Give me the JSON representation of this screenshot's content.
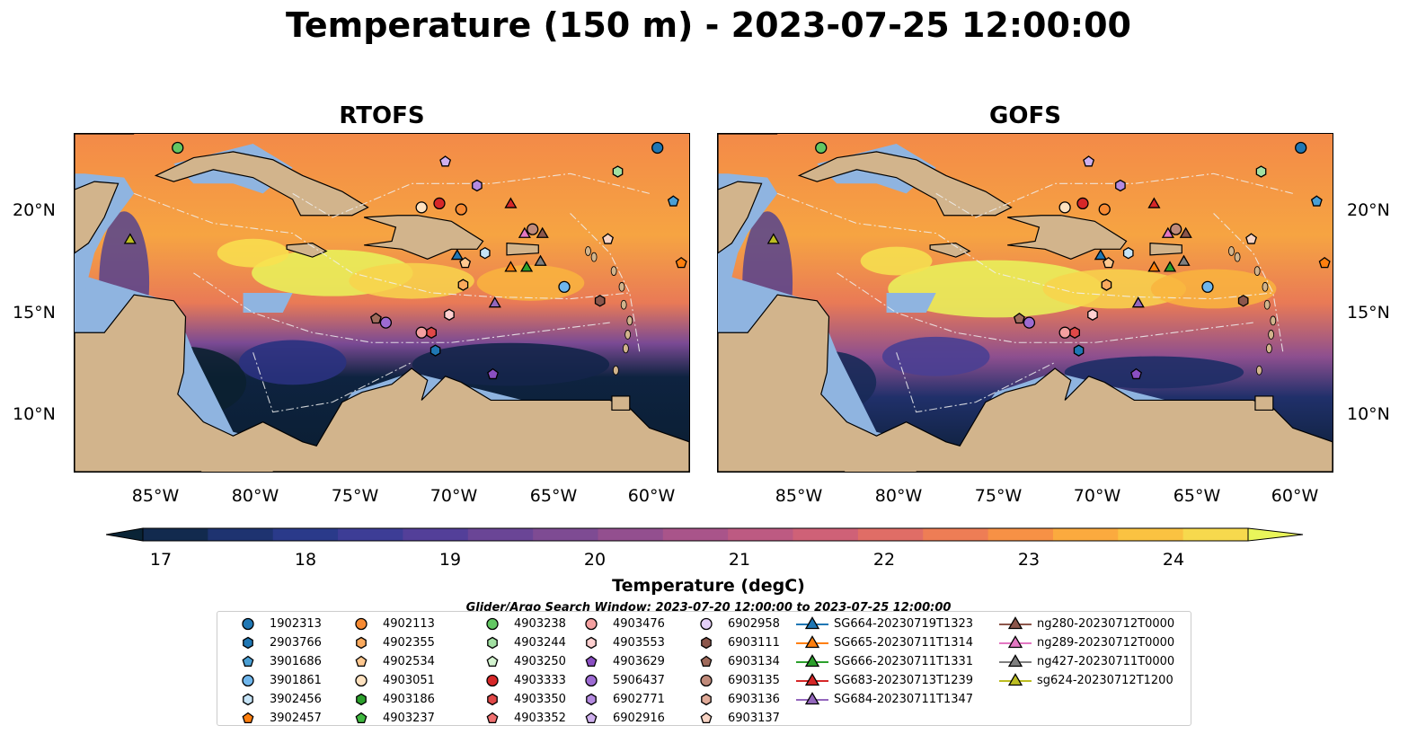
{
  "title": "Temperature (150 m) - 2023-07-25 12:00:00",
  "panels": [
    {
      "title": "RTOFS"
    },
    {
      "title": "GOFS"
    }
  ],
  "lat_labels": [
    "20°N",
    "15°N",
    "10°N"
  ],
  "lon_labels": [
    "85°W",
    "80°W",
    "75°W",
    "70°W",
    "65°W",
    "60°W"
  ],
  "map_extent": {
    "lon": [
      -89,
      -58
    ],
    "lat": [
      7,
      24
    ]
  },
  "colorbar": {
    "title": "Temperature (degC)",
    "ticks": [
      "17",
      "18",
      "19",
      "20",
      "21",
      "22",
      "23",
      "24"
    ],
    "range": [
      17,
      24.5
    ],
    "extend": "both",
    "colors": [
      "#0a2436",
      "#122a4e",
      "#1e3370",
      "#2a3a8a",
      "#3d3d96",
      "#533f99",
      "#6a4596",
      "#7e4b93",
      "#934f8f",
      "#a9548a",
      "#bd5a82",
      "#cf6177",
      "#e06d66",
      "#ee7d55",
      "#f79145",
      "#fbaa3e",
      "#fac241",
      "#f7d94d",
      "#e9f55a"
    ]
  },
  "search_window": "Glider/Argo Search Window: 2023-07-20 12:00:00 to 2023-07-25 12:00:00",
  "colors": {
    "land": "#d2b48c",
    "shelf": "#8fb4e0"
  },
  "legend": [
    {
      "label": "1902313",
      "marker": "circle",
      "color": "#1f77b4"
    },
    {
      "label": "2903766",
      "marker": "hexagon",
      "color": "#1f77b4"
    },
    {
      "label": "3901686",
      "marker": "pentagon",
      "color": "#4a9fd4"
    },
    {
      "label": "3901861",
      "marker": "circle",
      "color": "#6fb6ec"
    },
    {
      "label": "3902456",
      "marker": "hexagon",
      "color": "#c6e4f7"
    },
    {
      "label": "3902457",
      "marker": "pentagon",
      "color": "#ff7f0e"
    },
    {
      "label": "4902113",
      "marker": "circle",
      "color": "#f78a32"
    },
    {
      "label": "4902355",
      "marker": "hexagon",
      "color": "#fbaa5e"
    },
    {
      "label": "4902534",
      "marker": "pentagon",
      "color": "#ffc890"
    },
    {
      "label": "4903051",
      "marker": "circle",
      "color": "#ffe2c0"
    },
    {
      "label": "4903186",
      "marker": "hexagon",
      "color": "#2ca02c"
    },
    {
      "label": "4903237",
      "marker": "pentagon",
      "color": "#3fb83f"
    },
    {
      "label": "4903238",
      "marker": "circle",
      "color": "#63c763"
    },
    {
      "label": "4903244",
      "marker": "hexagon",
      "color": "#a2e0a2"
    },
    {
      "label": "4903250",
      "marker": "pentagon",
      "color": "#d4f4d0"
    },
    {
      "label": "4903333",
      "marker": "circle",
      "color": "#d62728"
    },
    {
      "label": "4903350",
      "marker": "hexagon",
      "color": "#e04848"
    },
    {
      "label": "4903352",
      "marker": "pentagon",
      "color": "#f07070"
    },
    {
      "label": "4903476",
      "marker": "circle",
      "color": "#f4a0a0"
    },
    {
      "label": "4903553",
      "marker": "hexagon",
      "color": "#ffd0d0"
    },
    {
      "label": "4903629",
      "marker": "pentagon",
      "color": "#8a4fc2"
    },
    {
      "label": "5906437",
      "marker": "circle",
      "color": "#9d6bd2"
    },
    {
      "label": "6902771",
      "marker": "hexagon",
      "color": "#b48ae0"
    },
    {
      "label": "6902916",
      "marker": "pentagon",
      "color": "#cfb0ee"
    },
    {
      "label": "6902958",
      "marker": "circle",
      "color": "#e4d0f8"
    },
    {
      "label": "6903111",
      "marker": "hexagon",
      "color": "#8c564b"
    },
    {
      "label": "6903134",
      "marker": "pentagon",
      "color": "#a06b5c"
    },
    {
      "label": "6903135",
      "marker": "circle",
      "color": "#c08a7a"
    },
    {
      "label": "6903136",
      "marker": "hexagon",
      "color": "#e0aa98"
    },
    {
      "label": "6903137",
      "marker": "pentagon",
      "color": "#f8d4c4"
    },
    {
      "label": "SG664-20230719T1323",
      "marker": "triangle-line",
      "color": "#1f77b4"
    },
    {
      "label": "SG665-20230711T1314",
      "marker": "triangle-line",
      "color": "#ff7f0e"
    },
    {
      "label": "SG666-20230711T1331",
      "marker": "triangle-line",
      "color": "#2ca02c"
    },
    {
      "label": "SG683-20230713T1239",
      "marker": "triangle-line",
      "color": "#d62728"
    },
    {
      "label": "SG684-20230711T1347",
      "marker": "triangle-line",
      "color": "#9467bd"
    },
    {
      "label": "ng280-20230712T0000",
      "marker": "triangle-line",
      "color": "#8c564b"
    },
    {
      "label": "ng289-20230712T0000",
      "marker": "triangle-line",
      "color": "#e377c2"
    },
    {
      "label": "ng427-20230711T0000",
      "marker": "triangle-line",
      "color": "#7f7f7f"
    },
    {
      "label": "sg624-20230712T1200",
      "marker": "triangle-line",
      "color": "#bcbd22"
    }
  ],
  "observations": [
    {
      "id": "4903238",
      "lon": -83.8,
      "lat": 23.3
    },
    {
      "id": "1902313",
      "lon": -59.6,
      "lat": 23.3
    },
    {
      "id": "6902916",
      "lon": -70.3,
      "lat": 22.6
    },
    {
      "id": "4903244",
      "lon": -61.6,
      "lat": 22.1
    },
    {
      "id": "6902771",
      "lon": -68.7,
      "lat": 21.4
    },
    {
      "id": "3901686",
      "lon": -58.8,
      "lat": 20.6
    },
    {
      "id": "4903051",
      "lon": -71.5,
      "lat": 20.3
    },
    {
      "id": "4903333",
      "lon": -70.6,
      "lat": 20.5
    },
    {
      "id": "4902113",
      "lon": -69.5,
      "lat": 20.2
    },
    {
      "id": "SG683-20230713T1239",
      "lon": -67.0,
      "lat": 20.5
    },
    {
      "id": "6903135",
      "lon": -65.9,
      "lat": 19.2
    },
    {
      "id": "ng280-20230712T0000",
      "lon": -65.4,
      "lat": 19.0
    },
    {
      "id": "ng289-20230712T0000",
      "lon": -66.3,
      "lat": 19.0
    },
    {
      "id": "sg624-20230712T1200",
      "lon": -86.2,
      "lat": 18.7
    },
    {
      "id": "6903137",
      "lon": -62.1,
      "lat": 18.7
    },
    {
      "id": "3902456",
      "lon": -68.3,
      "lat": 18.0
    },
    {
      "id": "SG664-20230719T1323",
      "lon": -69.7,
      "lat": 17.9
    },
    {
      "id": "4902534",
      "lon": -69.3,
      "lat": 17.5
    },
    {
      "id": "SG665-20230711T1314",
      "lon": -67.0,
      "lat": 17.3
    },
    {
      "id": "SG666-20230711T1331",
      "lon": -66.2,
      "lat": 17.3
    },
    {
      "id": "ng427-20230711T0000",
      "lon": -65.5,
      "lat": 17.6
    },
    {
      "id": "3902457",
      "lon": -58.4,
      "lat": 17.5
    },
    {
      "id": "4902355",
      "lon": -69.4,
      "lat": 16.4
    },
    {
      "id": "3901861",
      "lon": -64.3,
      "lat": 16.3
    },
    {
      "id": "6903111",
      "lon": -62.5,
      "lat": 15.6
    },
    {
      "id": "SG684-20230711T1347",
      "lon": -67.8,
      "lat": 15.5
    },
    {
      "id": "4903553",
      "lon": -70.1,
      "lat": 14.9
    },
    {
      "id": "6903134",
      "lon": -73.8,
      "lat": 14.7
    },
    {
      "id": "5906437",
      "lon": -73.3,
      "lat": 14.5
    },
    {
      "id": "4903476",
      "lon": -71.5,
      "lat": 14.0
    },
    {
      "id": "4903350",
      "lon": -71.0,
      "lat": 14.0
    },
    {
      "id": "2903766",
      "lon": -70.8,
      "lat": 13.1
    },
    {
      "id": "4903629",
      "lon": -67.9,
      "lat": 11.9
    }
  ]
}
